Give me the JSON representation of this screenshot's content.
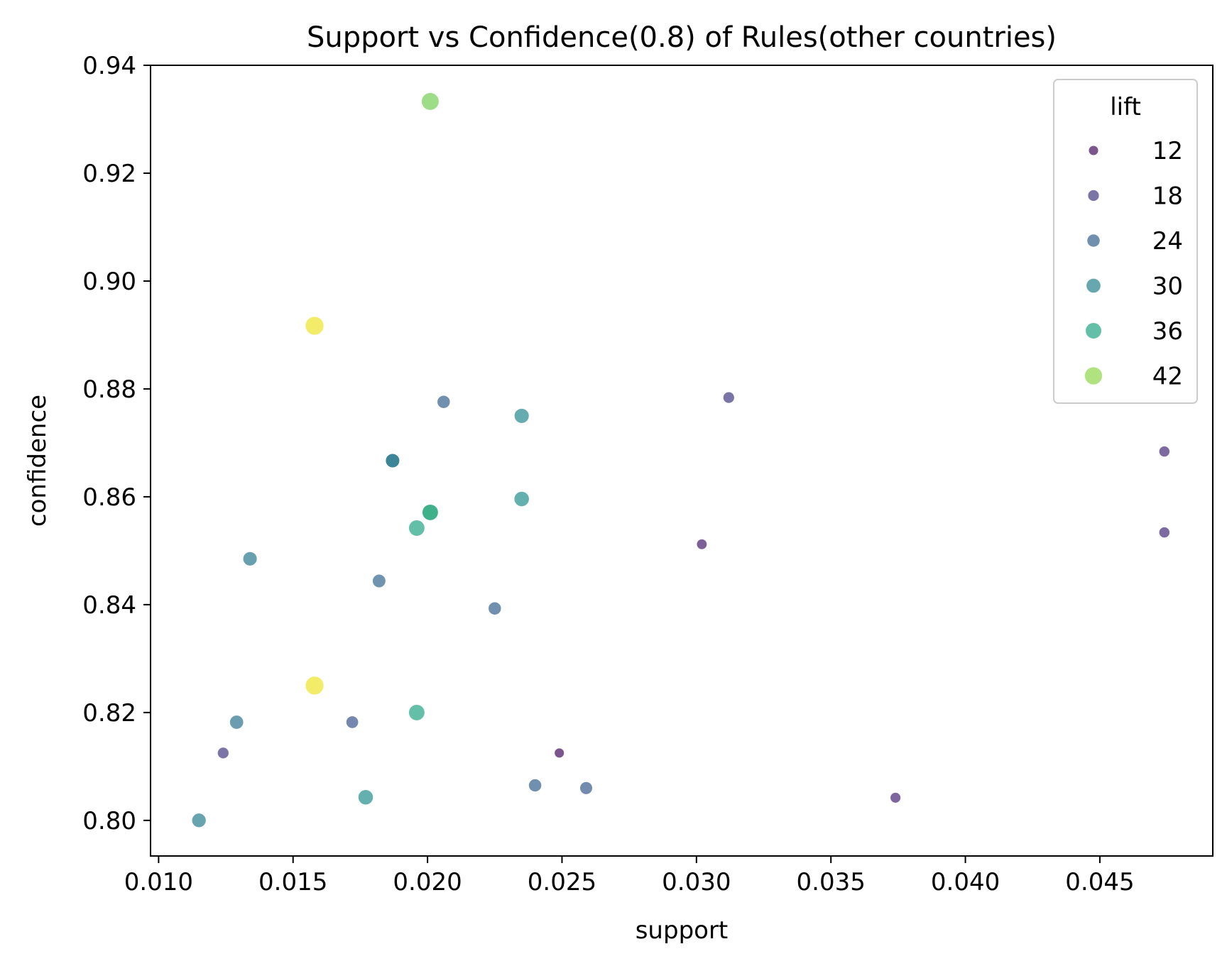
{
  "chart_data": {
    "type": "scatter",
    "title": "Support vs Confidence(0.8) of Rules(other countries)",
    "xlabel": "support",
    "ylabel": "confidence",
    "xlim": [
      0.0097,
      0.0492
    ],
    "ylim": [
      0.7934,
      0.94
    ],
    "xticks": [
      0.01,
      0.015,
      0.02,
      0.025,
      0.03,
      0.035,
      0.04,
      0.045
    ],
    "xtick_labels": [
      "0.010",
      "0.015",
      "0.020",
      "0.025",
      "0.030",
      "0.035",
      "0.040",
      "0.045"
    ],
    "yticks": [
      0.8,
      0.82,
      0.84,
      0.86,
      0.88,
      0.9,
      0.92,
      0.94
    ],
    "ytick_labels": [
      "0.80",
      "0.82",
      "0.84",
      "0.86",
      "0.88",
      "0.90",
      "0.92",
      "0.94"
    ],
    "grid": false,
    "colormap": "viridis",
    "point_opacity": 0.7,
    "legend": {
      "title": "lift",
      "placement": "top-right",
      "entries": [
        {
          "label": "12",
          "lift": 12
        },
        {
          "label": "18",
          "lift": 18
        },
        {
          "label": "24",
          "lift": 24
        },
        {
          "label": "30",
          "lift": 30
        },
        {
          "label": "36",
          "lift": 36
        },
        {
          "label": "42",
          "lift": 42
        }
      ]
    },
    "lift_range": [
      10.5,
      45.5
    ],
    "points": [
      {
        "x": 0.0201,
        "y": 0.9333,
        "lift": 41
      },
      {
        "x": 0.0158,
        "y": 0.8917,
        "lift": 45
      },
      {
        "x": 0.0206,
        "y": 0.8776,
        "lift": 24
      },
      {
        "x": 0.0235,
        "y": 0.875,
        "lift": 31
      },
      {
        "x": 0.0187,
        "y": 0.8667,
        "lift": 28
      },
      {
        "x": 0.0187,
        "y": 0.8667,
        "lift": 28
      },
      {
        "x": 0.0235,
        "y": 0.8596,
        "lift": 32
      },
      {
        "x": 0.0201,
        "y": 0.8571,
        "lift": 39
      },
      {
        "x": 0.0201,
        "y": 0.8571,
        "lift": 36
      },
      {
        "x": 0.0196,
        "y": 0.8542,
        "lift": 36
      },
      {
        "x": 0.0134,
        "y": 0.8485,
        "lift": 28
      },
      {
        "x": 0.0182,
        "y": 0.8444,
        "lift": 25
      },
      {
        "x": 0.0225,
        "y": 0.8393,
        "lift": 24
      },
      {
        "x": 0.0158,
        "y": 0.825,
        "lift": 45
      },
      {
        "x": 0.0196,
        "y": 0.82,
        "lift": 36
      },
      {
        "x": 0.0129,
        "y": 0.8182,
        "lift": 27
      },
      {
        "x": 0.0172,
        "y": 0.8182,
        "lift": 22
      },
      {
        "x": 0.0124,
        "y": 0.8125,
        "lift": 18
      },
      {
        "x": 0.0249,
        "y": 0.8125,
        "lift": 12
      },
      {
        "x": 0.024,
        "y": 0.8065,
        "lift": 24
      },
      {
        "x": 0.0259,
        "y": 0.806,
        "lift": 23
      },
      {
        "x": 0.0177,
        "y": 0.8043,
        "lift": 32
      },
      {
        "x": 0.0115,
        "y": 0.8,
        "lift": 29
      },
      {
        "x": 0.0302,
        "y": 0.8512,
        "lift": 14
      },
      {
        "x": 0.0312,
        "y": 0.8784,
        "lift": 18
      },
      {
        "x": 0.0474,
        "y": 0.8684,
        "lift": 16
      },
      {
        "x": 0.0474,
        "y": 0.8534,
        "lift": 16
      },
      {
        "x": 0.0374,
        "y": 0.8042,
        "lift": 15
      }
    ]
  }
}
